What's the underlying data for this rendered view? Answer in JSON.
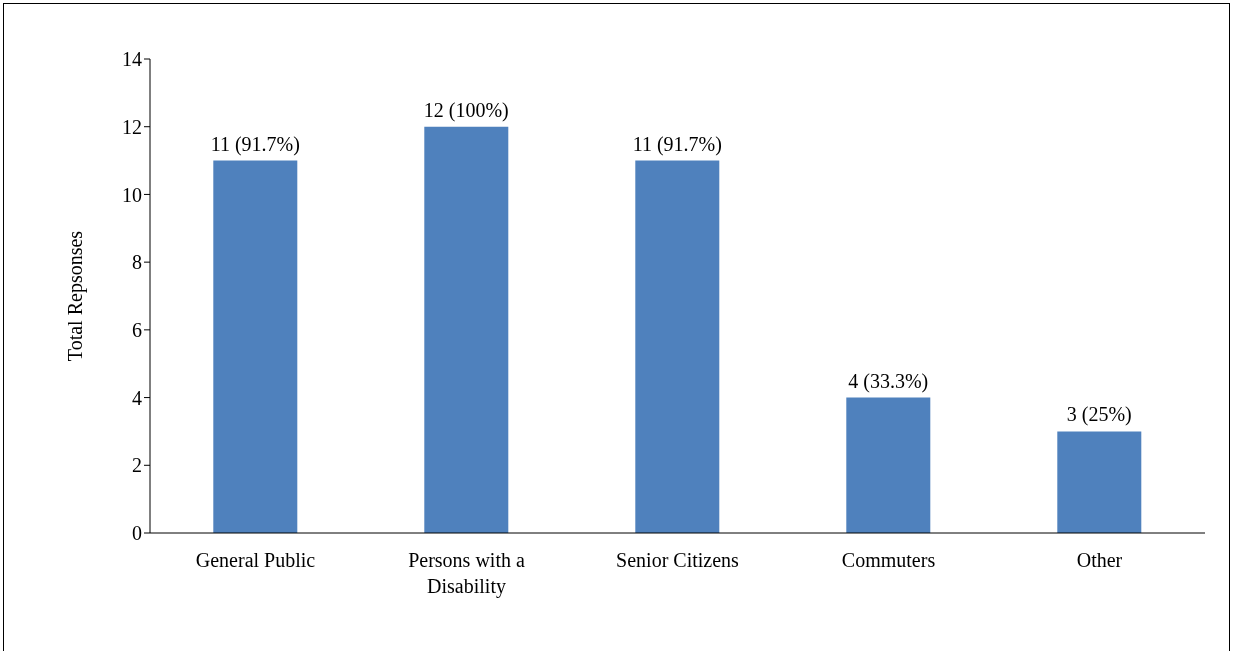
{
  "chart_data": {
    "type": "bar",
    "ylabel": "Total Repsonses",
    "categories": [
      "General Public",
      "Persons with a Disability",
      "Senior Citizens",
      "Commuters",
      "Other"
    ],
    "values": [
      11,
      12,
      11,
      4,
      3
    ],
    "value_labels": [
      "11 (91.7%)",
      "12 (100%)",
      "11 (91.7%)",
      "4 (33.3%)",
      "3 (25%)"
    ],
    "color": "#4f81bd",
    "ylim": [
      0,
      14
    ],
    "yticks": [
      0,
      2,
      4,
      6,
      8,
      10,
      12,
      14
    ],
    "grid": false,
    "legend": false
  }
}
